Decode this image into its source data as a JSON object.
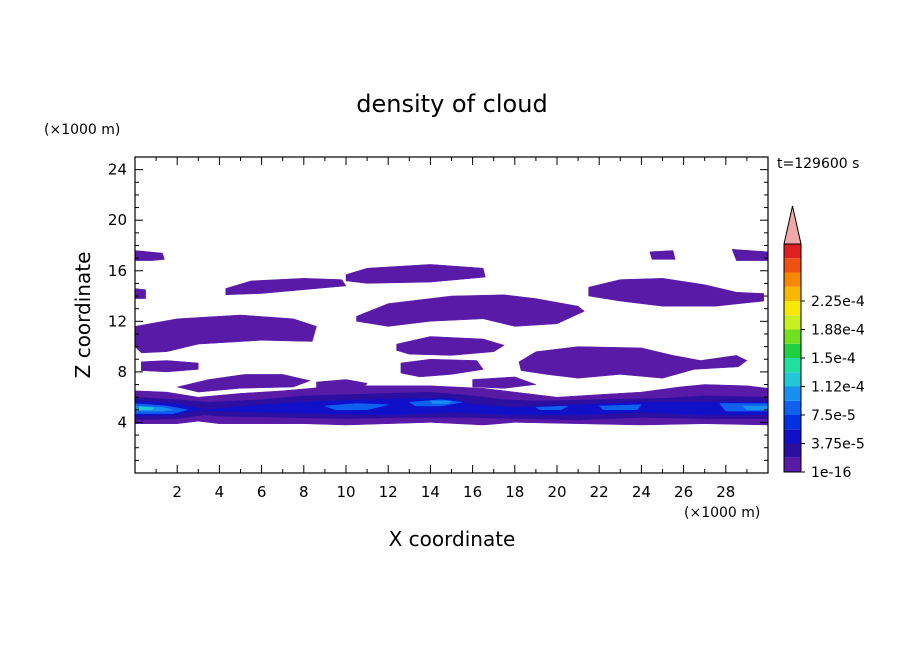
{
  "chart_data": {
    "type": "heatmap",
    "title": "density of cloud",
    "xlabel": "X coordinate",
    "ylabel": "Z coordinate",
    "x_unit": "(×1000 m)",
    "y_unit": "(×1000 m)",
    "time_label": "t=129600 s",
    "xlim": [
      0,
      30
    ],
    "ylim": [
      0,
      25
    ],
    "x_ticks": [
      2,
      4,
      6,
      8,
      10,
      12,
      14,
      16,
      18,
      20,
      22,
      24,
      26,
      28
    ],
    "y_ticks": [
      4,
      8,
      12,
      16,
      20,
      24
    ],
    "colorbar": {
      "labels": [
        "1e-16",
        "3.75e-5",
        "7.5e-5",
        "1.12e-4",
        "1.5e-4",
        "1.88e-4",
        "2.25e-4"
      ],
      "colors": [
        "#5a1aa8",
        "#2c0fa0",
        "#1010c8",
        "#0030e0",
        "#1060f0",
        "#1890f0",
        "#20c8d8",
        "#20e0a0",
        "#20d040",
        "#70e020",
        "#c8f020",
        "#f8e800",
        "#f8b800",
        "#f88800",
        "#f05010",
        "#e02020",
        "#f0a0a0"
      ],
      "extend_color": "#f0a8a8"
    },
    "cloud_regions": [
      {
        "level": 0,
        "points": [
          [
            0,
            17.6
          ],
          [
            1.3,
            17.4
          ],
          [
            1.4,
            16.9
          ],
          [
            0.8,
            16.8
          ],
          [
            0,
            16.8
          ]
        ]
      },
      {
        "level": 0,
        "points": [
          [
            0,
            14.6
          ],
          [
            0.5,
            14.5
          ],
          [
            0.5,
            13.8
          ],
          [
            0,
            13.8
          ]
        ]
      },
      {
        "level": 0,
        "points": [
          [
            0,
            11.6
          ],
          [
            2,
            12.2
          ],
          [
            5,
            12.5
          ],
          [
            7.5,
            12.2
          ],
          [
            8.6,
            11.6
          ],
          [
            8.4,
            10.4
          ],
          [
            6,
            10.5
          ],
          [
            3,
            10.2
          ],
          [
            1.5,
            9.6
          ],
          [
            0.3,
            9.5
          ],
          [
            0,
            10
          ]
        ]
      },
      {
        "level": 0,
        "points": [
          [
            4.3,
            14.6
          ],
          [
            5.5,
            15.2
          ],
          [
            8,
            15.4
          ],
          [
            9.8,
            15.3
          ],
          [
            10,
            14.8
          ],
          [
            8,
            14.5
          ],
          [
            6,
            14.2
          ],
          [
            4.3,
            14.1
          ]
        ]
      },
      {
        "level": 0,
        "points": [
          [
            10,
            15.7
          ],
          [
            11,
            16.2
          ],
          [
            14,
            16.5
          ],
          [
            16.5,
            16.2
          ],
          [
            16.6,
            15.5
          ],
          [
            14,
            15.1
          ],
          [
            11,
            15
          ],
          [
            10,
            15.2
          ]
        ]
      },
      {
        "level": 0,
        "points": [
          [
            10.5,
            12.4
          ],
          [
            12,
            13.4
          ],
          [
            15,
            14
          ],
          [
            17.5,
            14.1
          ],
          [
            19,
            13.8
          ],
          [
            21,
            13.2
          ],
          [
            21.3,
            12.8
          ],
          [
            20,
            11.8
          ],
          [
            18,
            11.6
          ],
          [
            16.5,
            12.2
          ],
          [
            14,
            12
          ],
          [
            12,
            11.6
          ],
          [
            10.5,
            12
          ]
        ]
      },
      {
        "level": 0,
        "points": [
          [
            21.5,
            14.7
          ],
          [
            23,
            15.3
          ],
          [
            25,
            15.4
          ],
          [
            27,
            14.9
          ],
          [
            28.5,
            14.3
          ],
          [
            29.8,
            14.2
          ],
          [
            29.8,
            13.6
          ],
          [
            27.5,
            13.2
          ],
          [
            25,
            13.2
          ],
          [
            23,
            13.6
          ],
          [
            21.5,
            14
          ]
        ]
      },
      {
        "level": 0,
        "points": [
          [
            24.4,
            17.5
          ],
          [
            25.5,
            17.6
          ],
          [
            25.6,
            16.9
          ],
          [
            24.5,
            16.9
          ]
        ]
      },
      {
        "level": 0,
        "points": [
          [
            28.3,
            17.7
          ],
          [
            30,
            17.5
          ],
          [
            30,
            16.8
          ],
          [
            28.5,
            16.8
          ]
        ]
      },
      {
        "level": 0,
        "points": [
          [
            12.4,
            10.2
          ],
          [
            14,
            10.8
          ],
          [
            16.5,
            10.6
          ],
          [
            17.5,
            10.1
          ],
          [
            17,
            9.6
          ],
          [
            15,
            9.3
          ],
          [
            13,
            9.4
          ],
          [
            12.4,
            9.7
          ]
        ]
      },
      {
        "level": 0,
        "points": [
          [
            18.2,
            8.8
          ],
          [
            19,
            9.6
          ],
          [
            21,
            10
          ],
          [
            24,
            9.9
          ],
          [
            25.5,
            9.3
          ],
          [
            26.8,
            8.9
          ],
          [
            28.5,
            9.3
          ],
          [
            29,
            8.9
          ],
          [
            28.6,
            8.4
          ],
          [
            26.5,
            8.2
          ],
          [
            25,
            7.5
          ],
          [
            23,
            7.8
          ],
          [
            21,
            7.5
          ],
          [
            19.5,
            7.8
          ],
          [
            18.3,
            8.1
          ]
        ]
      },
      {
        "level": 0,
        "points": [
          [
            0.3,
            8.8
          ],
          [
            1.5,
            8.9
          ],
          [
            3,
            8.7
          ],
          [
            3,
            8.2
          ],
          [
            1.5,
            8
          ],
          [
            0.3,
            8.1
          ]
        ]
      },
      {
        "level": 0,
        "points": [
          [
            12.6,
            8.7
          ],
          [
            14,
            9
          ],
          [
            16.2,
            8.9
          ],
          [
            16.5,
            8.2
          ],
          [
            15,
            7.8
          ],
          [
            13.5,
            7.6
          ],
          [
            12.6,
            7.9
          ]
        ]
      },
      {
        "level": 0,
        "points": [
          [
            8.6,
            7.2
          ],
          [
            10,
            7.4
          ],
          [
            11,
            7.1
          ],
          [
            10.8,
            6.6
          ],
          [
            9.5,
            6.5
          ],
          [
            8.6,
            6.7
          ]
        ]
      },
      {
        "level": 0,
        "points": [
          [
            2,
            6.8
          ],
          [
            3.5,
            7.4
          ],
          [
            5.2,
            7.8
          ],
          [
            7,
            7.8
          ],
          [
            8.3,
            7.3
          ],
          [
            7.5,
            6.8
          ],
          [
            5,
            6.7
          ],
          [
            3,
            6.4
          ]
        ]
      },
      {
        "level": 0,
        "points": [
          [
            16,
            7.4
          ],
          [
            18,
            7.6
          ],
          [
            19,
            7
          ],
          [
            17.5,
            6.7
          ],
          [
            16,
            6.8
          ]
        ]
      },
      {
        "level": 0,
        "points": [
          [
            0,
            6.5
          ],
          [
            1.5,
            6.4
          ],
          [
            3,
            6
          ],
          [
            5,
            6.3
          ],
          [
            7,
            6.5
          ],
          [
            9,
            6.8
          ],
          [
            11,
            6.9
          ],
          [
            14,
            6.9
          ],
          [
            16.5,
            6.7
          ],
          [
            18,
            6.4
          ],
          [
            20,
            6
          ],
          [
            22,
            6.2
          ],
          [
            24,
            6.4
          ],
          [
            25.8,
            6.8
          ],
          [
            27,
            7
          ],
          [
            29,
            6.9
          ],
          [
            30,
            6.7
          ],
          [
            30,
            3.8
          ],
          [
            27,
            3.9
          ],
          [
            24,
            3.8
          ],
          [
            21,
            3.9
          ],
          [
            18,
            4
          ],
          [
            16.5,
            3.8
          ],
          [
            14,
            4
          ],
          [
            12,
            3.9
          ],
          [
            10,
            3.8
          ],
          [
            8,
            3.9
          ],
          [
            6,
            3.9
          ],
          [
            4,
            3.9
          ],
          [
            3,
            4.1
          ],
          [
            2,
            3.9
          ],
          [
            0,
            3.9
          ]
        ]
      },
      {
        "level": 1,
        "points": [
          [
            0,
            6
          ],
          [
            2,
            5.8
          ],
          [
            3.5,
            5.6
          ],
          [
            6,
            5.8
          ],
          [
            8,
            6.1
          ],
          [
            10,
            6.2
          ],
          [
            12,
            6.3
          ],
          [
            14,
            6.4
          ],
          [
            16,
            6.1
          ],
          [
            17.5,
            5.8
          ],
          [
            19,
            5.7
          ],
          [
            22,
            5.8
          ],
          [
            25,
            5.9
          ],
          [
            27,
            6.1
          ],
          [
            30,
            6
          ],
          [
            30,
            4.3
          ],
          [
            27,
            4.3
          ],
          [
            24,
            4.4
          ],
          [
            21,
            4.2
          ],
          [
            18,
            4.3
          ],
          [
            16,
            4.4
          ],
          [
            13,
            4.4
          ],
          [
            10,
            4.3
          ],
          [
            7,
            4.4
          ],
          [
            4,
            4.5
          ],
          [
            3.3,
            4.6
          ],
          [
            2,
            4.3
          ],
          [
            0,
            4.2
          ]
        ]
      },
      {
        "level": 2,
        "points": [
          [
            0,
            5.7
          ],
          [
            2,
            5.5
          ],
          [
            3.3,
            5
          ],
          [
            6,
            5.4
          ],
          [
            9,
            5.7
          ],
          [
            11,
            5.8
          ],
          [
            13,
            5.9
          ],
          [
            15,
            5.9
          ],
          [
            16,
            5.4
          ],
          [
            18,
            5.2
          ],
          [
            21,
            5.4
          ],
          [
            24,
            5.6
          ],
          [
            27,
            5.6
          ],
          [
            30,
            5.6
          ],
          [
            30,
            4.6
          ],
          [
            27,
            4.6
          ],
          [
            24,
            4.8
          ],
          [
            21,
            4.6
          ],
          [
            18,
            4.6
          ],
          [
            15,
            4.8
          ],
          [
            12,
            4.6
          ],
          [
            9,
            4.7
          ],
          [
            6,
            4.8
          ],
          [
            4,
            4.9
          ],
          [
            3,
            5
          ],
          [
            2,
            4.6
          ],
          [
            0,
            4.5
          ]
        ]
      },
      {
        "level": 3,
        "points": [
          [
            0,
            5.5
          ],
          [
            1.5,
            5.3
          ],
          [
            2.5,
            5
          ],
          [
            1.8,
            4.7
          ],
          [
            0,
            4.7
          ]
        ]
      },
      {
        "level": 3,
        "points": [
          [
            9,
            5.3
          ],
          [
            10.5,
            5.5
          ],
          [
            12,
            5.4
          ],
          [
            11,
            5
          ],
          [
            9.5,
            5
          ]
        ]
      },
      {
        "level": 3,
        "points": [
          [
            13,
            5.6
          ],
          [
            14.5,
            5.8
          ],
          [
            15.5,
            5.6
          ],
          [
            14.5,
            5.3
          ],
          [
            13.3,
            5.3
          ]
        ]
      },
      {
        "level": 3,
        "points": [
          [
            19,
            5.2
          ],
          [
            20.5,
            5.3
          ],
          [
            20.2,
            5
          ],
          [
            19.2,
            5
          ]
        ]
      },
      {
        "level": 3,
        "points": [
          [
            22,
            5.3
          ],
          [
            24,
            5.4
          ],
          [
            23.8,
            5
          ],
          [
            22.2,
            5
          ]
        ]
      },
      {
        "level": 3,
        "points": [
          [
            27.7,
            5.5
          ],
          [
            30,
            5.5
          ],
          [
            30,
            4.9
          ],
          [
            28,
            4.9
          ]
        ]
      },
      {
        "level": 4,
        "points": [
          [
            0,
            5.3
          ],
          [
            1.3,
            5.2
          ],
          [
            1.8,
            5
          ],
          [
            1.3,
            4.9
          ],
          [
            0,
            4.9
          ]
        ]
      },
      {
        "level": 4,
        "points": [
          [
            14,
            5.7
          ],
          [
            15,
            5.7
          ],
          [
            14.8,
            5.5
          ],
          [
            14.1,
            5.5
          ]
        ]
      },
      {
        "level": 4,
        "points": [
          [
            28.8,
            5.3
          ],
          [
            30,
            5.3
          ],
          [
            30,
            5
          ],
          [
            29,
            5
          ]
        ]
      },
      {
        "level": 5,
        "points": [
          [
            0.2,
            5.25
          ],
          [
            0.9,
            5.15
          ],
          [
            0.8,
            5.0
          ],
          [
            0.2,
            5.0
          ]
        ]
      }
    ],
    "level_colors": [
      "#5a1aa8",
      "#2c0fa0",
      "#1010c8",
      "#1060f0",
      "#1890f0",
      "#20c8d8"
    ]
  }
}
